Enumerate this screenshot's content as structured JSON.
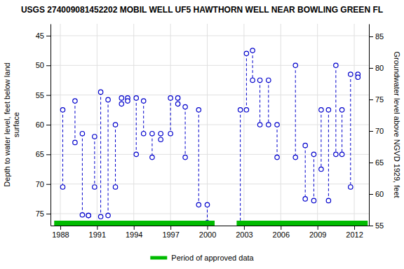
{
  "chart_data": {
    "type": "scatter",
    "title": "USGS 274009081452202 MOBIL WELL UF5 HAWTHORN WELL NEAR BOWLING GREEN FL",
    "ylabel": "Depth to water level, feet below land\nsurface",
    "y2label": "Groundwater level above NGVD 1929, feet",
    "xlim": [
      1987.2,
      2013.2
    ],
    "xticks": [
      1988,
      1991,
      1994,
      1997,
      2000,
      2003,
      2006,
      2009,
      2012
    ],
    "ylim": [
      77,
      43
    ],
    "yticks": [
      45,
      50,
      55,
      60,
      65,
      70,
      75
    ],
    "y2lim": [
      55,
      87
    ],
    "y2ticks": [
      55,
      60,
      65,
      70,
      75,
      80,
      85
    ],
    "grid": true,
    "legend": "bottom",
    "series": [
      {
        "x": [
          1988.2,
          1988.2
        ],
        "values": [
          57.5,
          70.5
        ],
        "color": "#0000CC",
        "marker": "circle",
        "line_style": "dashed"
      },
      {
        "x": [
          1989.2,
          1989.2
        ],
        "values": [
          56.0,
          63.0
        ],
        "color": "#0000CC",
        "marker": "circle",
        "line_style": "dashed"
      },
      {
        "x": [
          1989.8,
          1989.8
        ],
        "values": [
          61.5,
          75.2
        ],
        "color": "#0000CC",
        "marker": "circle",
        "line_style": "dashed"
      },
      {
        "x": [
          1990.3,
          1990.3
        ],
        "values": [
          75.3,
          75.3
        ],
        "color": "#0000CC",
        "marker": "circle",
        "line_style": "dashed"
      },
      {
        "x": [
          1990.8,
          1990.8
        ],
        "values": [
          62.0,
          70.5
        ],
        "color": "#0000CC",
        "marker": "circle",
        "line_style": "dashed"
      },
      {
        "x": [
          1991.3,
          1991.3
        ],
        "values": [
          54.5,
          75.5
        ],
        "color": "#0000CC",
        "marker": "circle",
        "line_style": "dashed"
      },
      {
        "x": [
          1991.9,
          1991.9
        ],
        "values": [
          55.8,
          75.3
        ],
        "color": "#0000CC",
        "marker": "circle",
        "line_style": "dashed"
      },
      {
        "x": [
          1992.5,
          1992.5
        ],
        "values": [
          60.0,
          70.5
        ],
        "color": "#0000CC",
        "marker": "circle",
        "line_style": "dashed"
      },
      {
        "x": [
          1993.0,
          1993.0
        ],
        "values": [
          55.5,
          56.5
        ],
        "color": "#0000CC",
        "marker": "circle",
        "line_style": "dashed"
      },
      {
        "x": [
          1993.5,
          1993.5
        ],
        "values": [
          55.5,
          56.0
        ],
        "color": "#0000CC",
        "marker": "circle",
        "line_style": "dashed"
      },
      {
        "x": [
          1994.2,
          1994.2
        ],
        "values": [
          55.5,
          65.0
        ],
        "color": "#0000CC",
        "marker": "circle",
        "line_style": "dashed"
      },
      {
        "x": [
          1994.8,
          1994.8
        ],
        "values": [
          56.0,
          61.5
        ],
        "color": "#0000CC",
        "marker": "circle",
        "line_style": "dashed"
      },
      {
        "x": [
          1995.5,
          1995.5
        ],
        "values": [
          61.5,
          65.5
        ],
        "color": "#0000CC",
        "marker": "circle",
        "line_style": "dashed"
      },
      {
        "x": [
          1996.2,
          1996.2
        ],
        "values": [
          61.5,
          62.5
        ],
        "color": "#0000CC",
        "marker": "circle",
        "line_style": "dashed"
      },
      {
        "x": [
          1997.0,
          1997.0
        ],
        "values": [
          55.5,
          61.5
        ],
        "color": "#0000CC",
        "marker": "circle",
        "line_style": "dashed"
      },
      {
        "x": [
          1997.6,
          1997.6
        ],
        "values": [
          55.5,
          56.5
        ],
        "color": "#0000CC",
        "marker": "circle",
        "line_style": "dashed"
      },
      {
        "x": [
          1998.2,
          1998.2
        ],
        "values": [
          57.0,
          65.5
        ],
        "color": "#0000CC",
        "marker": "circle",
        "line_style": "dashed"
      },
      {
        "x": [
          1999.3,
          1999.3
        ],
        "values": [
          57.5,
          73.5
        ],
        "color": "#0000CC",
        "marker": "circle",
        "line_style": "dashed"
      },
      {
        "x": [
          2000.0,
          2000.0
        ],
        "values": [
          73.5,
          76.5
        ],
        "color": "#0000CC",
        "marker": "circle",
        "line_style": "dashed"
      },
      {
        "x": [
          2002.7,
          2002.7
        ],
        "values": [
          57.5,
          76.8
        ],
        "color": "#0000CC",
        "marker": "circle",
        "line_style": "dashed"
      },
      {
        "x": [
          2003.2,
          2003.2
        ],
        "values": [
          48.0,
          57.5
        ],
        "color": "#0000CC",
        "marker": "circle",
        "line_style": "dashed"
      },
      {
        "x": [
          2003.7,
          2003.7
        ],
        "values": [
          47.5,
          52.5
        ],
        "color": "#0000CC",
        "marker": "circle",
        "line_style": "dashed"
      },
      {
        "x": [
          2004.3,
          2004.3
        ],
        "values": [
          52.5,
          60.0
        ],
        "color": "#0000CC",
        "marker": "circle",
        "line_style": "dashed"
      },
      {
        "x": [
          2005.0,
          2005.0
        ],
        "values": [
          52.5,
          60.0
        ],
        "color": "#0000CC",
        "marker": "circle",
        "line_style": "dashed"
      },
      {
        "x": [
          2005.7,
          2005.7
        ],
        "values": [
          60.0,
          65.5
        ],
        "color": "#0000CC",
        "marker": "circle",
        "line_style": "dashed"
      },
      {
        "x": [
          2007.2,
          2007.2
        ],
        "values": [
          50.0,
          65.5
        ],
        "color": "#0000CC",
        "marker": "circle",
        "line_style": "dashed"
      },
      {
        "x": [
          2008.0,
          2008.0
        ],
        "values": [
          63.5,
          72.5
        ],
        "color": "#0000CC",
        "marker": "circle",
        "line_style": "dashed"
      },
      {
        "x": [
          2008.7,
          2008.7
        ],
        "values": [
          65.0,
          72.8
        ],
        "color": "#0000CC",
        "marker": "circle",
        "line_style": "dashed"
      },
      {
        "x": [
          2009.3,
          2009.3
        ],
        "values": [
          57.5,
          67.5
        ],
        "color": "#0000CC",
        "marker": "circle",
        "line_style": "dashed"
      },
      {
        "x": [
          2009.9,
          2009.9
        ],
        "values": [
          57.5,
          72.8
        ],
        "color": "#0000CC",
        "marker": "circle",
        "line_style": "dashed"
      },
      {
        "x": [
          2010.5,
          2010.5
        ],
        "values": [
          50.0,
          65.0
        ],
        "color": "#0000CC",
        "marker": "circle",
        "line_style": "dashed"
      },
      {
        "x": [
          2011.0,
          2011.0
        ],
        "values": [
          57.5,
          65.0
        ],
        "color": "#0000CC",
        "marker": "circle",
        "line_style": "dashed"
      },
      {
        "x": [
          2011.7,
          2011.7
        ],
        "values": [
          51.5,
          70.5
        ],
        "color": "#0000CC",
        "marker": "circle",
        "line_style": "dashed"
      },
      {
        "x": [
          2012.3,
          2012.3
        ],
        "values": [
          51.5,
          52.0
        ],
        "color": "#0000CC",
        "marker": "circle",
        "line_style": "dashed"
      },
      {
        "name": "Period of approved data",
        "type": "span",
        "color": "#00BB00",
        "ranges": [
          [
            1987.5,
            2000.6
          ],
          [
            2002.4,
            2013.1
          ]
        ]
      }
    ]
  }
}
